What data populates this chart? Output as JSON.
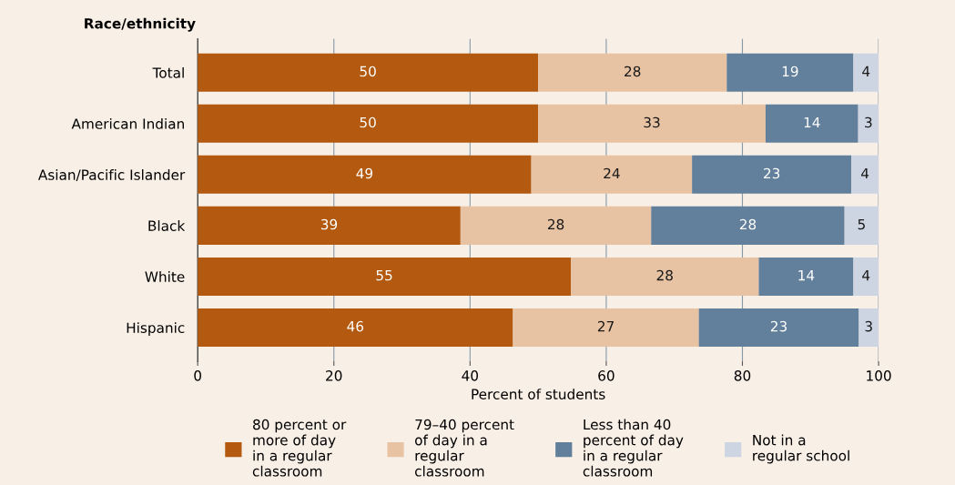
{
  "chart_data": {
    "type": "bar",
    "orientation": "horizontal",
    "stacked": true,
    "ylabel": "Race/ethnicity",
    "xlabel": "Percent of students",
    "categories": [
      "Total",
      "American Indian",
      "Asian/Pacific Islander",
      "Black",
      "White",
      "Hispanic"
    ],
    "series": [
      {
        "name": "80 percent or\nmore of day\nin a regular\nclassroom",
        "color": "#b35a10",
        "values": [
          50.0,
          50.0,
          49.0,
          38.6,
          54.8,
          46.3
        ],
        "value_labels": [
          "50",
          "50",
          "49",
          "39",
          "55",
          "46"
        ]
      },
      {
        "name": "79–40 percent\nof day in a\nregular\nclassroom",
        "color": "#e8c3a3",
        "values": [
          27.7,
          33.4,
          23.6,
          28.0,
          27.6,
          27.3
        ],
        "value_labels": [
          "28",
          "33",
          "24",
          "28",
          "28",
          "27"
        ]
      },
      {
        "name": "Less than 40\npercent of day\nin a regular\nclassroom",
        "color": "#627f9b",
        "values": [
          18.6,
          13.6,
          23.4,
          28.4,
          13.9,
          23.5
        ],
        "value_labels": [
          "19",
          "14",
          "23",
          "28",
          "14",
          "23"
        ]
      },
      {
        "name": "Not in a\nregular school",
        "color": "#cdd5e2",
        "values": [
          3.7,
          3.0,
          4.0,
          5.0,
          3.7,
          2.9
        ],
        "value_labels": [
          "4",
          "3",
          "4",
          "5",
          "4",
          "3"
        ]
      }
    ],
    "xlim": [
      0,
      100
    ],
    "xticks": [
      0,
      20,
      40,
      60,
      80,
      100
    ],
    "grid": "x",
    "legend": "bottom"
  }
}
